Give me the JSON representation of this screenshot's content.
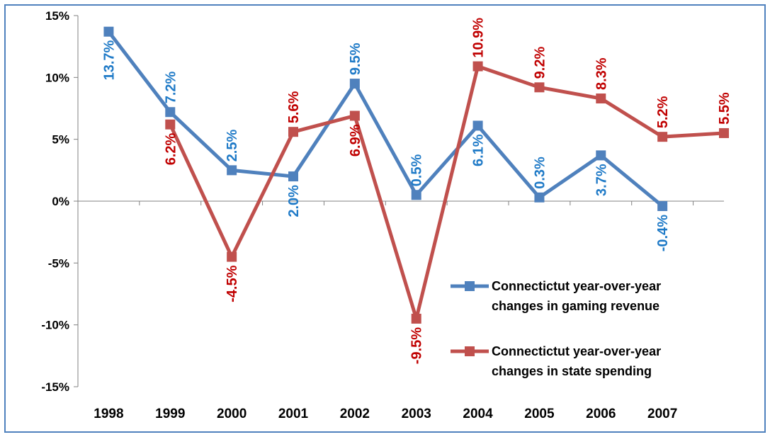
{
  "chart_data": {
    "type": "line",
    "categories": [
      "1998",
      "1999",
      "2000",
      "2001",
      "2002",
      "2003",
      "2004",
      "2005",
      "2006",
      "2007",
      ""
    ],
    "ylim": [
      -15,
      15
    ],
    "y_ticks": [
      "15%",
      "10%",
      "5%",
      "0%",
      "-5%",
      "-10%",
      "-15%"
    ],
    "grid": false,
    "legend_position": "lower-right",
    "series": [
      {
        "name": "Connectictut year-over-year changes in  gaming revenue",
        "legend_lines": [
          "Connectictut year-over-year",
          "changes in  gaming revenue"
        ],
        "color": "#4f81bd",
        "label_color": "#1f7ac7",
        "values": [
          13.7,
          7.2,
          2.5,
          2.0,
          9.5,
          0.5,
          6.1,
          0.3,
          3.7,
          -0.4,
          null
        ],
        "labels": [
          "13.7%",
          "7.2%",
          "2.5%",
          "2.0%",
          "9.5%",
          "0.5%",
          "6.1%",
          "0.3%",
          "3.7%",
          "-0.4%",
          ""
        ]
      },
      {
        "name": "Connectictut year-over-year changes in state spending",
        "legend_lines": [
          "Connectictut year-over-year",
          "changes in state spending"
        ],
        "color": "#c0504d",
        "label_color": "#c00000",
        "values": [
          null,
          6.2,
          -4.5,
          5.6,
          6.9,
          -9.5,
          10.9,
          9.2,
          8.3,
          5.2,
          5.5
        ],
        "labels": [
          "",
          "6.2%",
          "-4.5%",
          "5.6%",
          "6.9%",
          "-9.5%",
          "10.9%",
          "9.2%",
          "8.3%",
          "5.2%",
          "5.5%"
        ]
      }
    ]
  }
}
